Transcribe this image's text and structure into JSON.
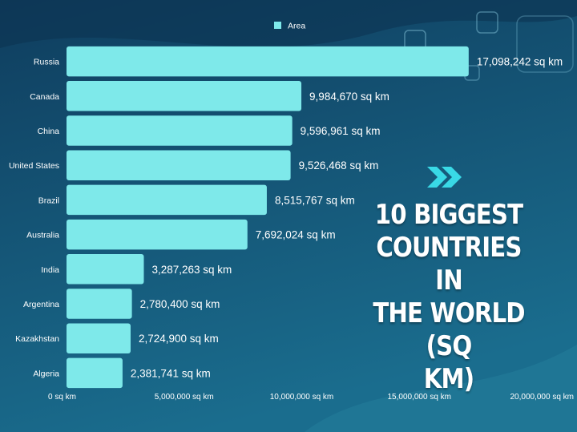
{
  "colors": {
    "bar": "#7ee9ea",
    "background_top": "#0f3d5e",
    "background_bottom": "#1a6d8e",
    "text": "#ffffff",
    "arrow": "#39d9e6"
  },
  "headline": {
    "line1": "10 BIGGEST",
    "line2": "COUNTRIES IN",
    "line3": "THE WORLD (SQ",
    "line4": "KM)"
  },
  "decor_icon": "double-chevron-right-icon",
  "chart_data": {
    "type": "bar",
    "orientation": "horizontal",
    "legend": {
      "label": "Area",
      "position": "top-center"
    },
    "categories": [
      "Russia",
      "Canada",
      "China",
      "United States",
      "Brazil",
      "Australia",
      "India",
      "Argentina",
      "Kazakhstan",
      "Algeria"
    ],
    "series": [
      {
        "name": "Area",
        "values": [
          17098242,
          9984670,
          9596961,
          9526468,
          8515767,
          7692024,
          3287263,
          2780400,
          2724900,
          2381741
        ]
      }
    ],
    "data_labels": [
      "17,098,242 sq km",
      "9,984,670 sq km",
      "9,596,961 sq km",
      "9,526,468 sq km",
      "8,515,767 sq km",
      "7,692,024 sq km",
      "3,287,263 sq km",
      "2,780,400 sq km",
      "2,724,900 sq km",
      "2,381,741 sq km"
    ],
    "x_ticks": [
      0,
      5000000,
      10000000,
      15000000,
      20000000
    ],
    "x_tick_labels": [
      "0 sq km",
      "5,000,000 sq km",
      "10,000,000 sq km",
      "15,000,000 sq km",
      "20,000,000 sq km"
    ],
    "xlim": [
      0,
      20000000
    ],
    "grid": false
  }
}
